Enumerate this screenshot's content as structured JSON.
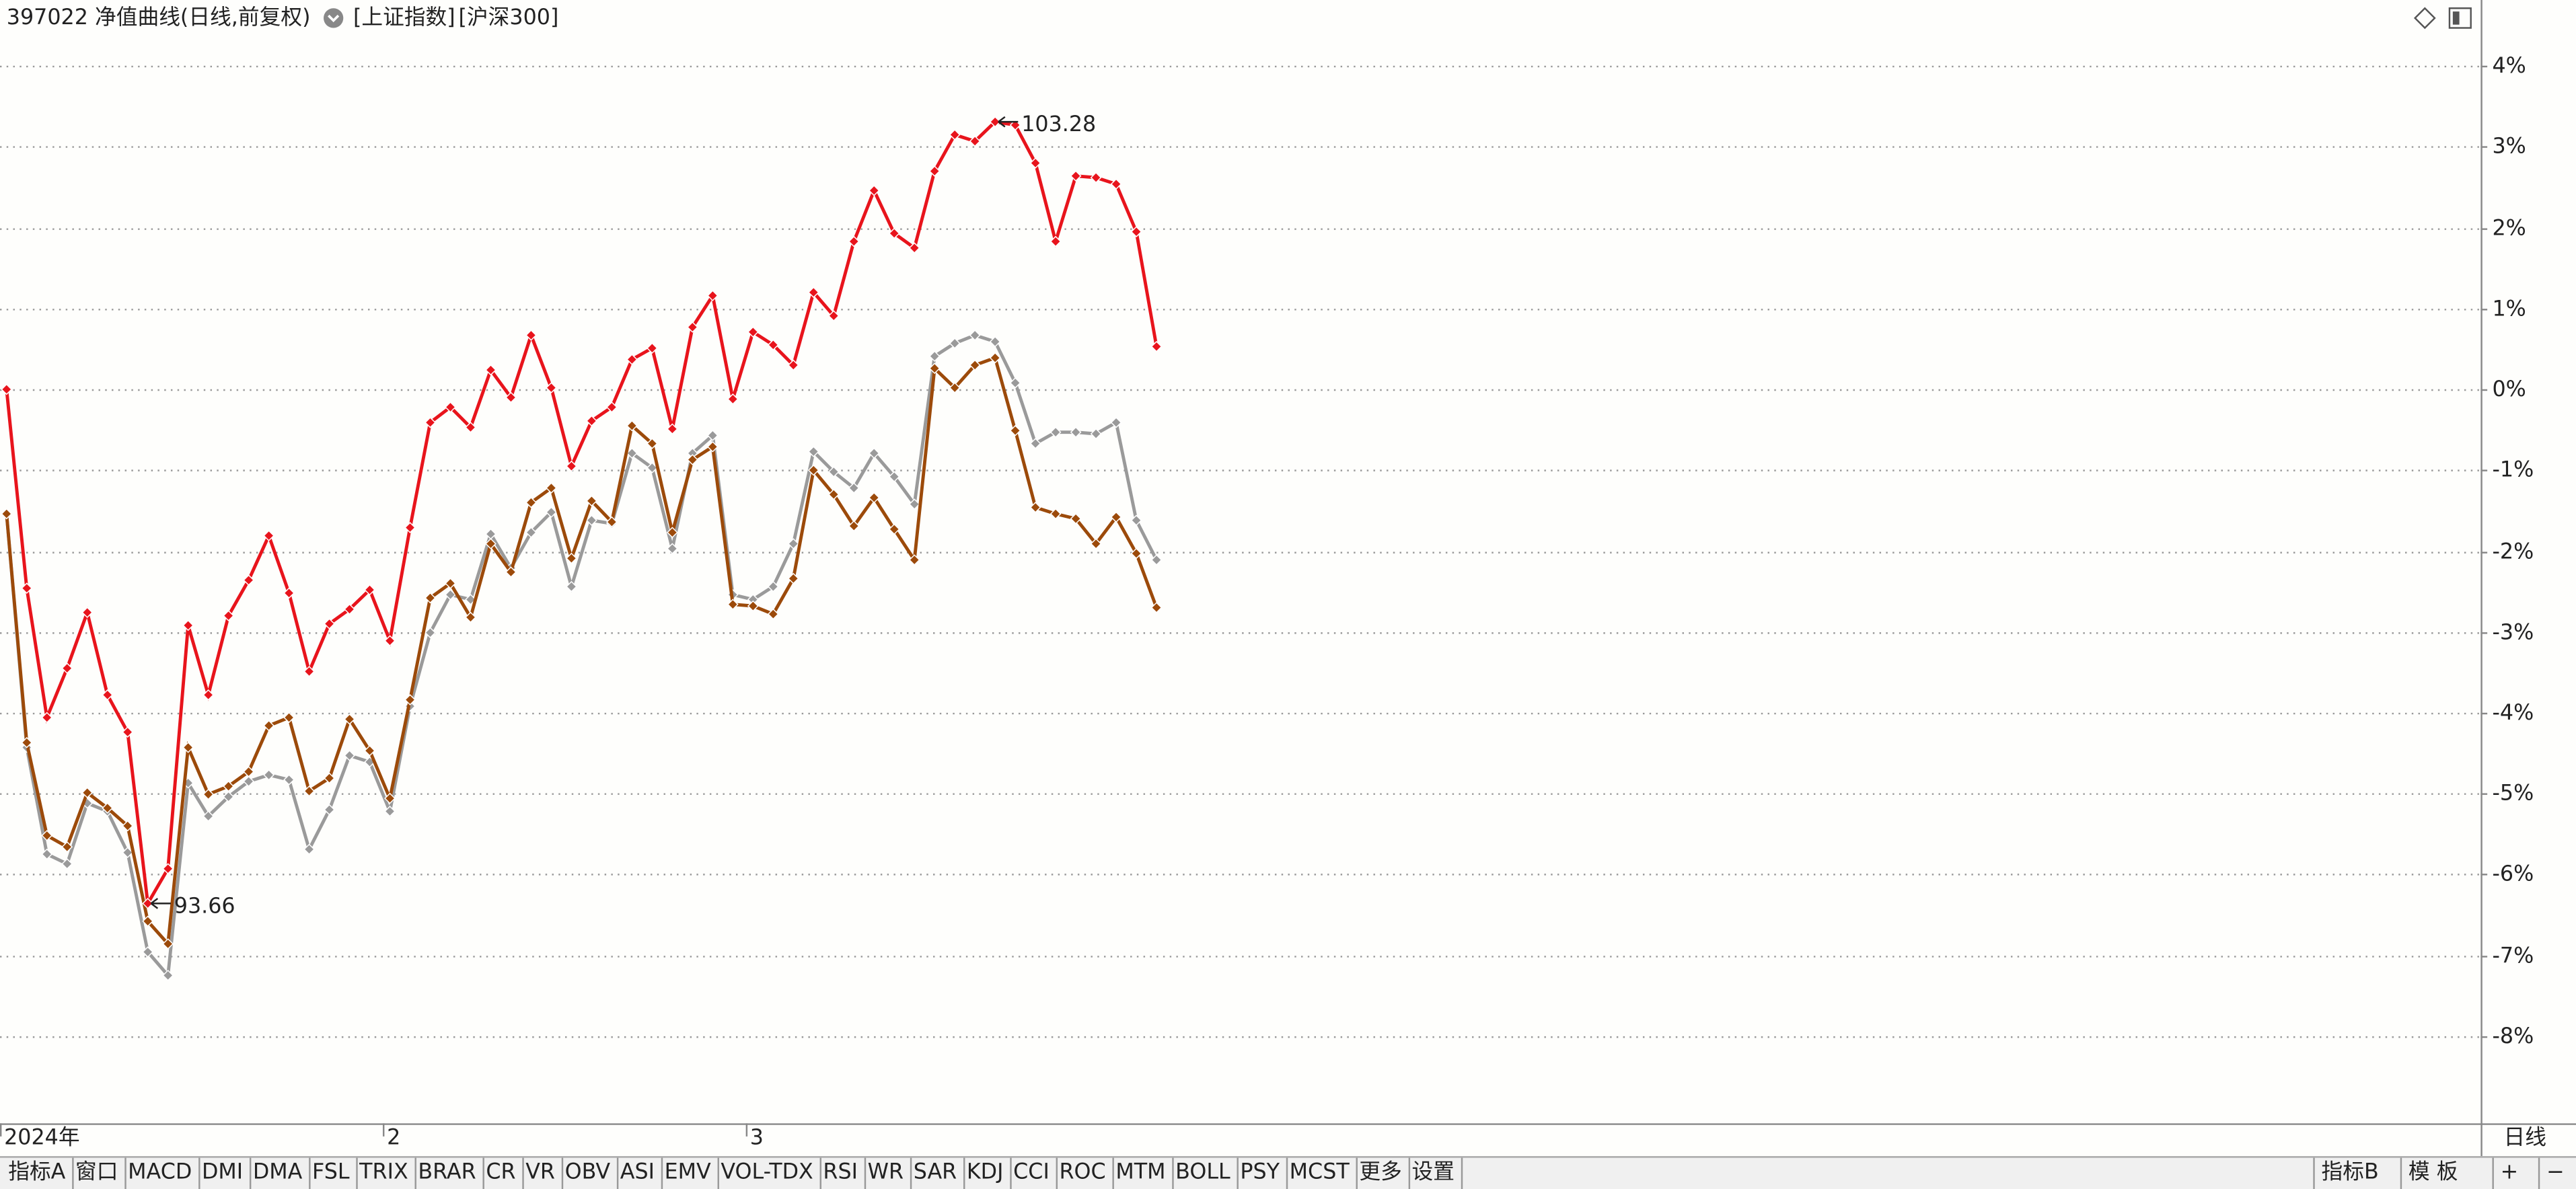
{
  "header": {
    "title": "397022 净值曲线(日线,前复权)"
  },
  "chart_data": {
    "type": "line",
    "categories": [
      "2024年",
      null,
      null,
      null,
      null,
      null,
      null,
      null,
      null,
      null,
      null,
      null,
      null,
      null,
      null,
      null,
      null,
      null,
      null,
      "2",
      null,
      null,
      null,
      null,
      null,
      null,
      null,
      null,
      null,
      null,
      null,
      null,
      null,
      null,
      null,
      null,
      null,
      "3",
      null,
      null,
      null,
      null,
      null,
      null,
      null,
      null,
      null,
      null,
      null,
      null,
      null,
      null,
      null,
      null,
      null,
      null,
      null,
      null
    ],
    "ylim": [
      -9.08,
      4.37
    ],
    "yticks": [
      {
        "value": 4,
        "label": "4%"
      },
      {
        "value": 3,
        "label": "3%"
      },
      {
        "value": 2,
        "label": "2%"
      },
      {
        "value": 1,
        "label": "1%"
      },
      {
        "value": 0,
        "label": "0%"
      },
      {
        "value": -1,
        "label": "-1%"
      },
      {
        "value": -2,
        "label": "-2%"
      },
      {
        "value": -3,
        "label": "-3%"
      },
      {
        "value": -4,
        "label": "-4%"
      },
      {
        "value": -5,
        "label": "-5%"
      },
      {
        "value": -6,
        "label": "-6%"
      },
      {
        "value": -7,
        "label": "-7%"
      },
      {
        "value": -8,
        "label": "-8%"
      }
    ],
    "grid": true,
    "period": "日线",
    "min_label": "93.66",
    "max_label": "103.28",
    "series": [
      {
        "color": "#e8141c",
        "values": [
          0,
          -2.46,
          -4.06,
          -3.45,
          -2.76,
          -3.78,
          -4.24,
          -6.36,
          -5.93,
          -2.92,
          -3.78,
          -2.8,
          -2.36,
          -1.81,
          -2.52,
          -3.49,
          -2.9,
          -2.72,
          -2.48,
          -3.11,
          -1.71,
          -0.41,
          -0.22,
          -0.47,
          0.24,
          -0.1,
          0.67,
          0.02,
          -0.95,
          -0.39,
          -0.22,
          0.37,
          0.51,
          -0.49,
          0.77,
          1.16,
          -0.12,
          0.71,
          0.55,
          0.3,
          1.2,
          0.91,
          1.83,
          2.46,
          1.93,
          1.75,
          2.7,
          3.15,
          3.07,
          3.31,
          3.27,
          2.8,
          1.83,
          2.64,
          2.62,
          2.54,
          1.95,
          0.53
        ]
      },
      {
        "name": "[上证指数]",
        "color": "#9a9a9a",
        "values": [
          -1.54,
          -4.43,
          -5.75,
          -5.87,
          -5.12,
          -5.22,
          -5.73,
          -6.96,
          -7.25,
          -4.87,
          -5.28,
          -5.04,
          -4.85,
          -4.77,
          -4.83,
          -5.69,
          -5.2,
          -4.53,
          -4.61,
          -5.22,
          -3.92,
          -3.01,
          -2.54,
          -2.6,
          -1.79,
          -2.21,
          -1.77,
          -1.52,
          -2.44,
          -1.62,
          -1.66,
          -0.79,
          -0.97,
          -1.97,
          -0.79,
          -0.57,
          -2.54,
          -2.6,
          -2.44,
          -1.91,
          -0.77,
          -1.02,
          -1.22,
          -0.79,
          -1.08,
          -1.42,
          0.41,
          0.57,
          0.67,
          0.59,
          0.08,
          -0.67,
          -0.53,
          -0.53,
          -0.55,
          -0.41,
          -1.62,
          -2.11
        ]
      },
      {
        "name": "[沪深300]",
        "color": "#9c4a0a",
        "values": [
          -1.54,
          -4.37,
          -5.52,
          -5.66,
          -4.99,
          -5.18,
          -5.4,
          -6.58,
          -6.86,
          -4.43,
          -5.01,
          -4.91,
          -4.73,
          -4.16,
          -4.06,
          -4.97,
          -4.81,
          -4.08,
          -4.47,
          -5.06,
          -3.84,
          -2.58,
          -2.4,
          -2.82,
          -1.91,
          -2.26,
          -1.4,
          -1.22,
          -2.09,
          -1.38,
          -1.64,
          -0.45,
          -0.67,
          -1.77,
          -0.87,
          -0.71,
          -2.66,
          -2.68,
          -2.78,
          -2.34,
          -1.0,
          -1.3,
          -1.69,
          -1.34,
          -1.73,
          -2.11,
          0.26,
          0.02,
          0.3,
          0.39,
          -0.51,
          -1.46,
          -1.54,
          -1.6,
          -1.91,
          -1.58,
          -2.03,
          -2.7
        ]
      }
    ]
  },
  "toolbar": {
    "tabs": [
      "指标A",
      "窗口",
      "MACD",
      "DMI",
      "DMA",
      "FSL",
      "TRIX",
      "BRAR",
      "CR",
      "VR",
      "OBV",
      "ASI",
      "EMV",
      "VOL-TDX",
      "RSI",
      "WR",
      "SAR",
      "KDJ",
      "CCI",
      "ROC",
      "MTM",
      "BOLL",
      "PSY",
      "MCST",
      "更多",
      "设置"
    ],
    "last_tab_color": "#e60000",
    "right_tabs": [
      "指标B",
      "模 板",
      "+",
      "−"
    ]
  }
}
